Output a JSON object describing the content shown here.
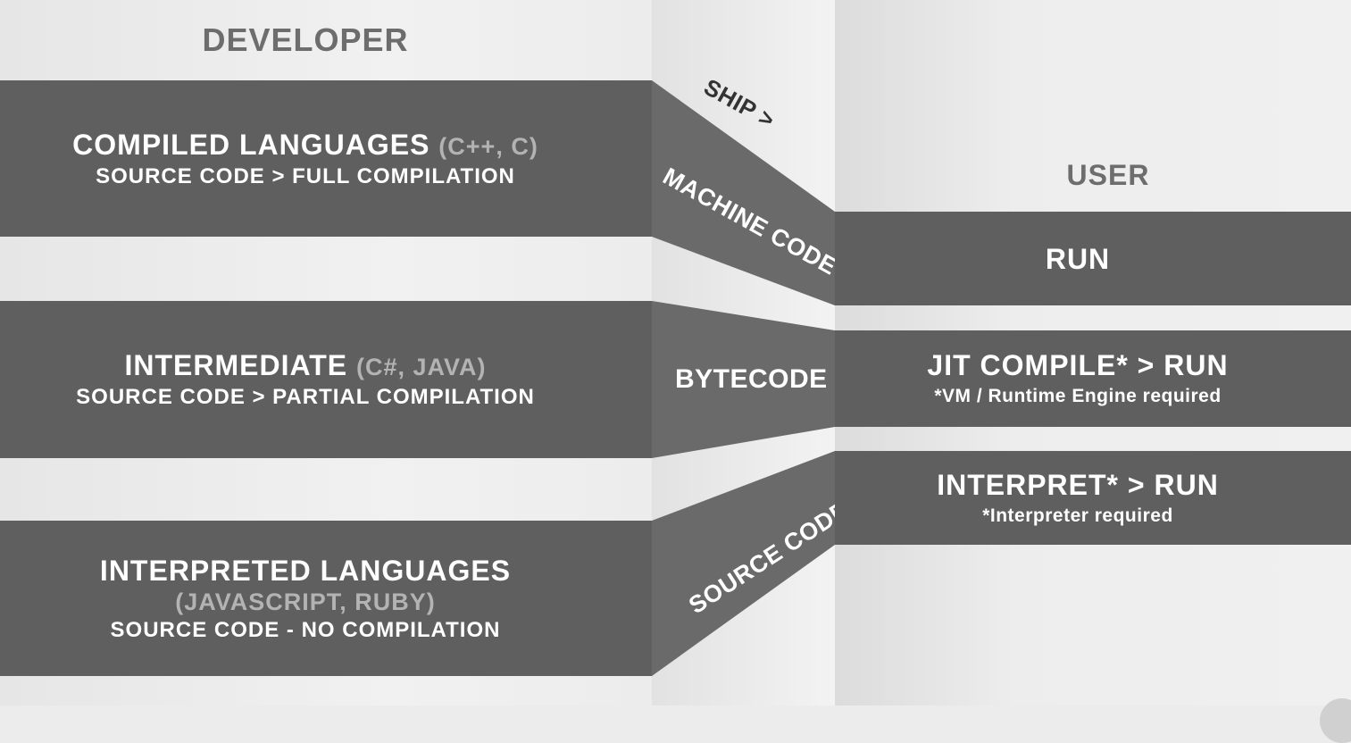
{
  "developer": {
    "title": "DEVELOPER",
    "compiled": {
      "title": "COMPILED LANGUAGES",
      "examples": "(C++, C)",
      "subtitle": "SOURCE CODE > FULL COMPILATION"
    },
    "intermediate": {
      "title": "INTERMEDIATE",
      "examples": "(C#, JAVA)",
      "subtitle": "SOURCE CODE > PARTIAL COMPILATION"
    },
    "interpreted": {
      "title": "INTERPRETED LANGUAGES",
      "examples": "(JAVASCRIPT, RUBY)",
      "subtitle": "SOURCE CODE - NO COMPILATION"
    }
  },
  "ship": {
    "label": "SHIP >",
    "machine_code": "MACHINE CODE",
    "bytecode": "BYTECODE",
    "source_code": "SOURCE CODE"
  },
  "user": {
    "title": "USER",
    "run": {
      "title": "RUN"
    },
    "jit": {
      "title": "JIT COMPILE* > RUN",
      "note": "*VM / Runtime Engine required"
    },
    "interpret": {
      "title": "INTERPRET* > RUN",
      "note": "*Interpreter required"
    }
  },
  "colors": {
    "band": "#5f5f5f",
    "connector": "#707070",
    "background": "#ececec",
    "heading": "#6d6d6d",
    "example_text": "#b3b3b3"
  }
}
